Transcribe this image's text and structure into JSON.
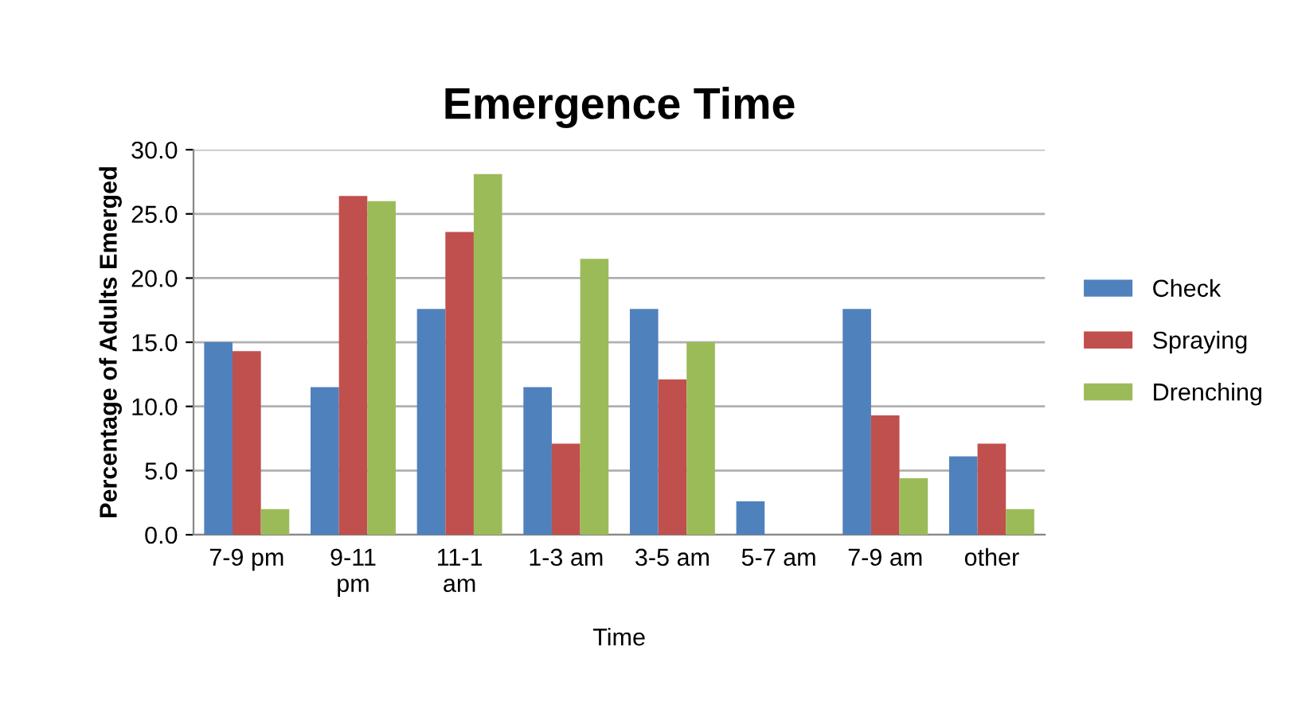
{
  "chart_data": {
    "type": "bar",
    "title": "Emergence Time",
    "xlabel": "Time",
    "ylabel": "Percentage of Adults Emerged",
    "categories": [
      "7-9 pm",
      "9-11\npm",
      "11-1\nam",
      "1-3 am",
      "3-5 am",
      "5-7 am",
      "7-9 am",
      "other"
    ],
    "series": [
      {
        "name": "Check",
        "color": "#4f81bd",
        "values": [
          15.0,
          11.5,
          17.6,
          11.5,
          17.6,
          2.6,
          17.6,
          6.1
        ]
      },
      {
        "name": "Spraying",
        "color": "#c0504d",
        "values": [
          14.3,
          26.4,
          23.6,
          7.1,
          12.1,
          0,
          9.3,
          7.1
        ]
      },
      {
        "name": "Drenching",
        "color": "#9bbb59",
        "values": [
          2.0,
          26.0,
          28.1,
          21.5,
          15.0,
          0,
          4.4,
          2.0
        ]
      }
    ],
    "ylim": [
      0,
      30
    ],
    "yticks": [
      {
        "value": 0,
        "label": "0.0"
      },
      {
        "value": 5,
        "label": "5.0"
      },
      {
        "value": 10,
        "label": "10.0"
      },
      {
        "value": 15,
        "label": "15.0"
      },
      {
        "value": 20,
        "label": "20.0"
      },
      {
        "value": 25,
        "label": "25.0"
      },
      {
        "value": 30,
        "label": "30.0"
      }
    ],
    "grid": "y",
    "legend": "right"
  }
}
